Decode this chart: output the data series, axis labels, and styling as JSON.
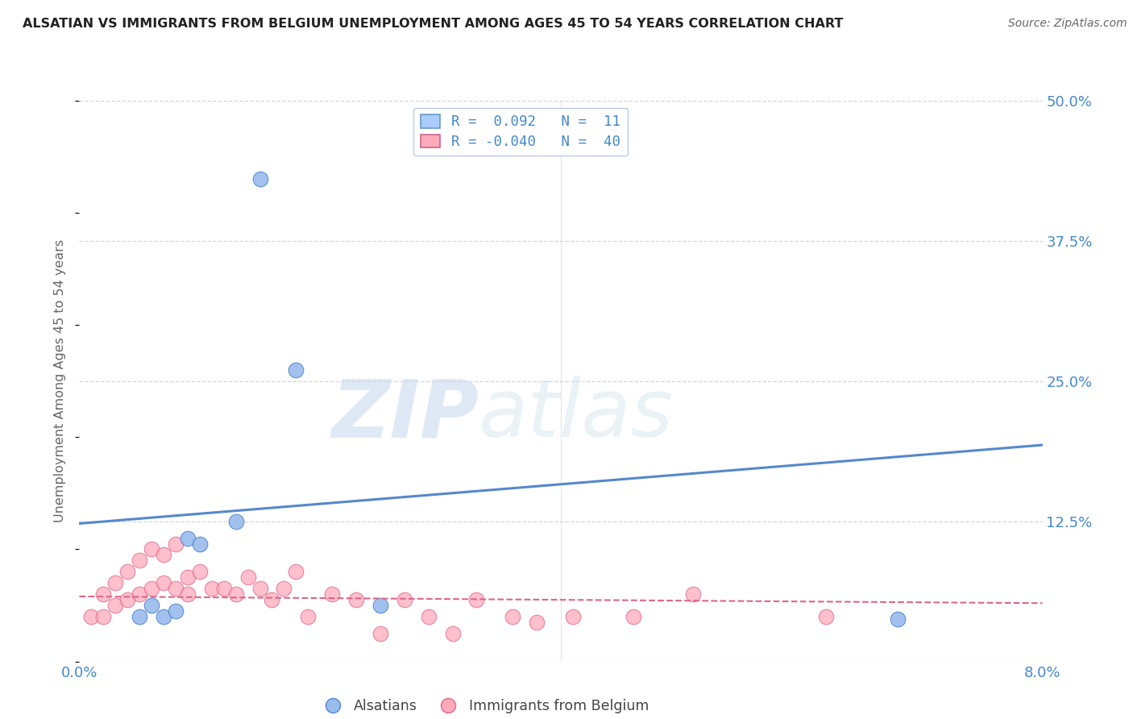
{
  "title": "ALSATIAN VS IMMIGRANTS FROM BELGIUM UNEMPLOYMENT AMONG AGES 45 TO 54 YEARS CORRELATION CHART",
  "source": "Source: ZipAtlas.com",
  "ylabel": "Unemployment Among Ages 45 to 54 years",
  "xlim": [
    0.0,
    0.08
  ],
  "ylim": [
    0.0,
    0.5
  ],
  "yticks": [
    0.0,
    0.125,
    0.25,
    0.375,
    0.5
  ],
  "ytick_labels": [
    "",
    "12.5%",
    "25.0%",
    "37.5%",
    "50.0%"
  ],
  "xtick_left": "0.0%",
  "xtick_right": "8.0%",
  "watermark_zip": "ZIP",
  "watermark_atlas": "atlas",
  "legend_box": [
    {
      "label": "R =  0.092   N =  11",
      "facecolor": "#aaccff",
      "edgecolor": "#6699cc"
    },
    {
      "label": "R = -0.040   N =  40",
      "facecolor": "#ffaabb",
      "edgecolor": "#cc6688"
    }
  ],
  "bottom_legend": [
    "Alsatians",
    "Immigrants from Belgium"
  ],
  "blue_series": {
    "color": "#99bbee",
    "edge_color": "#5588cc",
    "x": [
      0.005,
      0.006,
      0.007,
      0.008,
      0.009,
      0.01,
      0.013,
      0.015,
      0.018,
      0.025,
      0.068
    ],
    "y": [
      0.04,
      0.05,
      0.04,
      0.045,
      0.11,
      0.105,
      0.125,
      0.43,
      0.26,
      0.05,
      0.038
    ]
  },
  "pink_series": {
    "color": "#ffaabb",
    "edge_color": "#dd6688",
    "x": [
      0.001,
      0.002,
      0.002,
      0.003,
      0.003,
      0.004,
      0.004,
      0.005,
      0.005,
      0.006,
      0.006,
      0.007,
      0.007,
      0.008,
      0.008,
      0.009,
      0.009,
      0.01,
      0.011,
      0.012,
      0.013,
      0.014,
      0.015,
      0.016,
      0.017,
      0.018,
      0.019,
      0.021,
      0.023,
      0.025,
      0.027,
      0.029,
      0.031,
      0.033,
      0.036,
      0.038,
      0.041,
      0.046,
      0.051,
      0.062
    ],
    "y": [
      0.04,
      0.06,
      0.04,
      0.07,
      0.05,
      0.08,
      0.055,
      0.09,
      0.06,
      0.1,
      0.065,
      0.095,
      0.07,
      0.105,
      0.065,
      0.075,
      0.06,
      0.08,
      0.065,
      0.065,
      0.06,
      0.075,
      0.065,
      0.055,
      0.065,
      0.08,
      0.04,
      0.06,
      0.055,
      0.025,
      0.055,
      0.04,
      0.025,
      0.055,
      0.04,
      0.035,
      0.04,
      0.04,
      0.06,
      0.04
    ]
  },
  "blue_line": {
    "x0": 0.0,
    "y0": 0.123,
    "x1": 0.08,
    "y1": 0.193
  },
  "pink_line": {
    "x0": 0.0,
    "y0": 0.058,
    "x1": 0.08,
    "y1": 0.052
  },
  "title_color": "#222222",
  "axis_label_color": "#4488cc",
  "grid_color": "#cccccc",
  "background_color": "#ffffff",
  "ylabel_color": "#666666",
  "source_color": "#666666"
}
